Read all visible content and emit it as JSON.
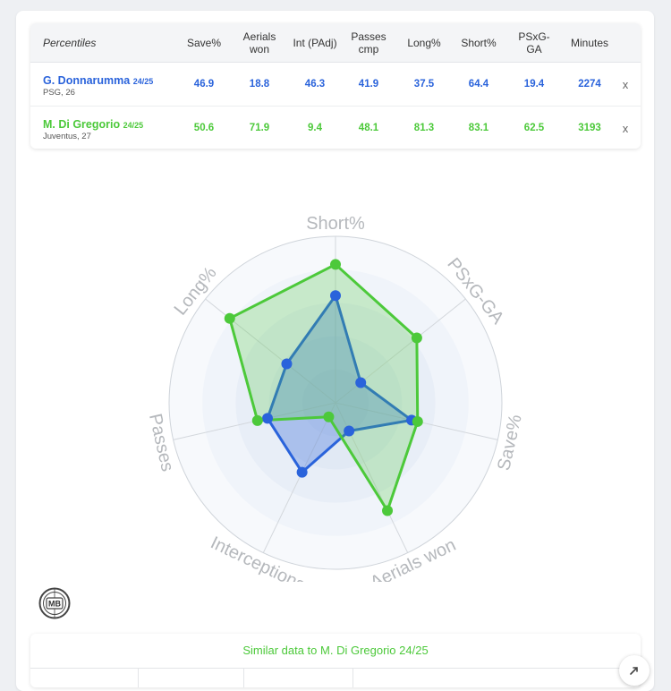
{
  "table": {
    "header_label": "Percentiles",
    "columns": [
      "Save%",
      "Aerials won",
      "Int (PAdj)",
      "Passes cmp",
      "Long%",
      "Short%",
      "PSxG-GA",
      "Minutes"
    ],
    "remove_label": "x",
    "players": [
      {
        "name": "G. Donnarumma",
        "season": "24/25",
        "info": "PSG, 26",
        "color": "#2a63db",
        "values": [
          "46.9",
          "18.8",
          "46.3",
          "41.9",
          "37.5",
          "64.4",
          "19.4",
          "2274"
        ]
      },
      {
        "name": "M. Di Gregorio",
        "season": "24/25",
        "info": "Juventus, 27",
        "color": "#4cc93a",
        "values": [
          "50.6",
          "71.9",
          "9.4",
          "48.1",
          "81.3",
          "83.1",
          "62.5",
          "3193"
        ]
      }
    ]
  },
  "chart_data": {
    "type": "radar",
    "axes": [
      "Short%",
      "PSxG-GA",
      "Save%",
      "Aerials won",
      "Interceptions",
      "Passes",
      "Long%"
    ],
    "range": [
      0,
      100
    ],
    "series": [
      {
        "name": "G. Donnarumma 24/25",
        "color": "#2a63db",
        "values": [
          64.4,
          19.4,
          46.9,
          18.8,
          46.3,
          41.9,
          37.5
        ]
      },
      {
        "name": "M. Di Gregorio 24/25",
        "color": "#4cc93a",
        "values": [
          83.1,
          62.5,
          50.6,
          71.9,
          9.4,
          48.1,
          81.3
        ]
      }
    ]
  },
  "logo": {
    "text": "MB"
  },
  "similar": {
    "title": "Similar data to M. Di Gregorio 24/25"
  }
}
